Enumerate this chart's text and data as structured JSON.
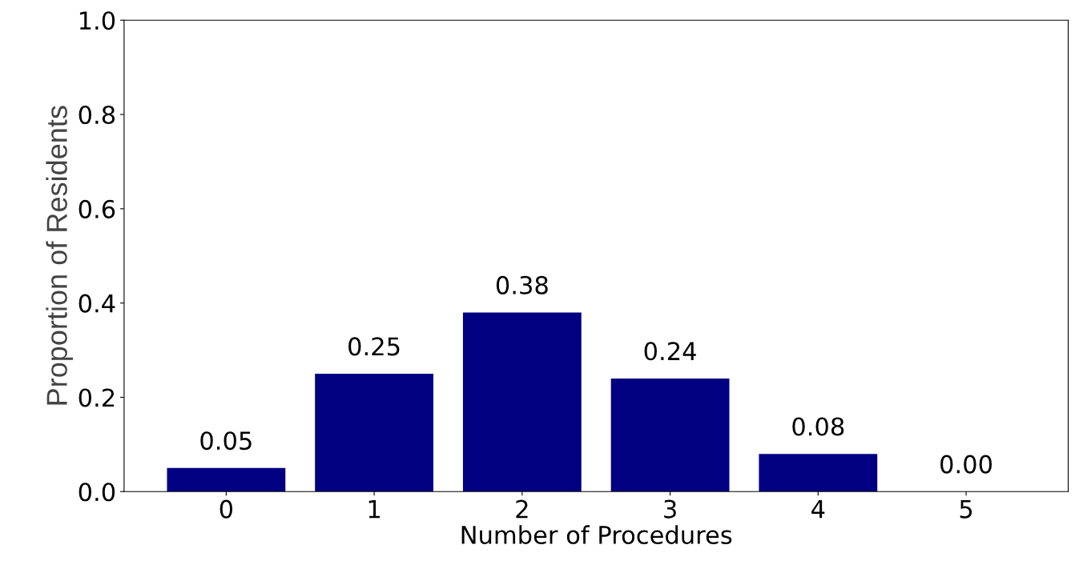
{
  "chart_data": {
    "type": "bar",
    "xlabel": "Number of Procedures",
    "ylabel": "Proportion of Residents",
    "categories": [
      "0",
      "1",
      "2",
      "3",
      "4",
      "5"
    ],
    "values": [
      0.05,
      0.25,
      0.38,
      0.24,
      0.08,
      0.0
    ],
    "color": "#000080",
    "ylim": [
      0,
      1.0
    ],
    "yticks": [
      {
        "value": 0,
        "label": "0.0"
      },
      {
        "value": 0.2,
        "label": "0.2"
      },
      {
        "value": 0.4,
        "label": "0.4"
      },
      {
        "value": 0.6,
        "label": "0.6"
      },
      {
        "value": 0.8,
        "label": "0.8"
      },
      {
        "value": 1.0,
        "label": "1.0"
      }
    ],
    "value_labels": [
      "0.05",
      "0.25",
      "0.38",
      "0.24",
      "0.08",
      "0.00"
    ],
    "grid": false,
    "legend": false
  }
}
